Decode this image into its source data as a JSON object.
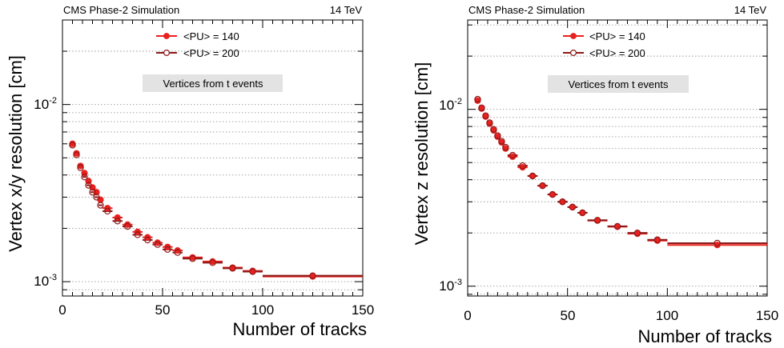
{
  "chart_data": [
    {
      "type": "scatter",
      "header_left": "CMS Phase-2 Simulation",
      "header_right": "14 TeV",
      "xlabel": "Number of tracks",
      "ylabel": "Vertex x/y resolution [cm]",
      "annotation": "Vertices from t events",
      "xlim": [
        0,
        150
      ],
      "ylim": [
        0.00083,
        0.03
      ],
      "y_scale": "log",
      "grid": "horizontal dotted",
      "legend_position": "top-center",
      "x_ticks": [
        "0",
        "50",
        "100",
        "150"
      ],
      "y_tick_values": [
        0.001,
        0.01
      ],
      "y_ticks": [
        "10",
        "10"
      ],
      "y_tick_exponents": [
        "-3",
        "-2"
      ],
      "series": [
        {
          "name": "<PU> = 140",
          "marker": "filled-circle",
          "color": "#e8211e",
          "x": [
            5,
            7,
            9,
            11,
            13,
            15,
            17,
            19,
            22.5,
            27.5,
            32.5,
            37.5,
            42.5,
            47.5,
            52.5,
            57.5,
            65,
            75,
            85,
            95,
            125
          ],
          "x_err": [
            1,
            1,
            1,
            1,
            1,
            1,
            1,
            1,
            2.5,
            2.5,
            2.5,
            2.5,
            2.5,
            2.5,
            2.5,
            2.5,
            5,
            5,
            5,
            5,
            25
          ],
          "y": [
            0.006,
            0.0053,
            0.0045,
            0.0041,
            0.0037,
            0.0034,
            0.0032,
            0.0029,
            0.0026,
            0.0023,
            0.0021,
            0.00191,
            0.00178,
            0.00166,
            0.00157,
            0.0015,
            0.00137,
            0.0013,
            0.0012,
            0.00115,
            0.00107
          ]
        },
        {
          "name": "<PU> = 200",
          "marker": "open-circle",
          "color": "#8b1a1a",
          "x": [
            5,
            7,
            9,
            11,
            13,
            15,
            17,
            19,
            22.5,
            27.5,
            32.5,
            37.5,
            42.5,
            47.5,
            52.5,
            57.5,
            65,
            75,
            85,
            95,
            125
          ],
          "x_err": [
            1,
            1,
            1,
            1,
            1,
            1,
            1,
            1,
            2.5,
            2.5,
            2.5,
            2.5,
            2.5,
            2.5,
            2.5,
            2.5,
            5,
            5,
            5,
            5,
            25
          ],
          "y": [
            0.0059,
            0.0052,
            0.0044,
            0.0039,
            0.0035,
            0.0032,
            0.003,
            0.0027,
            0.0025,
            0.0022,
            0.00205,
            0.00184,
            0.00172,
            0.00162,
            0.00152,
            0.00146,
            0.00135,
            0.00128,
            0.00119,
            0.00114,
            0.00108
          ]
        }
      ]
    },
    {
      "type": "scatter",
      "header_left": "CMS Phase-2 Simulation",
      "header_right": "14 TeV",
      "xlabel": "Number of tracks",
      "ylabel": "Vertex z resolution [cm]",
      "annotation": "Vertices from t events",
      "xlim": [
        0,
        150
      ],
      "ylim": [
        0.00088,
        0.032
      ],
      "y_scale": "log",
      "grid": "horizontal dotted",
      "legend_position": "top-center",
      "x_ticks": [
        "0",
        "50",
        "100",
        "150"
      ],
      "y_tick_values": [
        0.001,
        0.01
      ],
      "y_ticks": [
        "10",
        "10"
      ],
      "y_tick_exponents": [
        "-3",
        "-2"
      ],
      "series": [
        {
          "name": "<PU> = 140",
          "marker": "filled-circle",
          "color": "#e8211e",
          "x": [
            5,
            7,
            9,
            11,
            13,
            15,
            17,
            19,
            22.5,
            27.5,
            32.5,
            37.5,
            42.5,
            47.5,
            52.5,
            57.5,
            65,
            75,
            85,
            95,
            125
          ],
          "x_err": [
            1,
            1,
            1,
            1,
            1,
            1,
            1,
            1,
            2.5,
            2.5,
            2.5,
            2.5,
            2.5,
            2.5,
            2.5,
            2.5,
            5,
            5,
            5,
            5,
            25
          ],
          "y": [
            0.0112,
            0.0101,
            0.0091,
            0.0083,
            0.0076,
            0.007,
            0.0065,
            0.006,
            0.0054,
            0.0047,
            0.0042,
            0.0037,
            0.0033,
            0.003,
            0.0028,
            0.0026,
            0.00235,
            0.00217,
            0.00198,
            0.00181,
            0.00171
          ]
        },
        {
          "name": "<PU> = 200",
          "marker": "open-circle",
          "color": "#8b1a1a",
          "x": [
            5,
            7,
            9,
            11,
            13,
            15,
            17,
            19,
            22.5,
            27.5,
            32.5,
            37.5,
            42.5,
            47.5,
            52.5,
            57.5,
            65,
            75,
            85,
            95,
            125
          ],
          "x_err": [
            1,
            1,
            1,
            1,
            1,
            1,
            1,
            1,
            2.5,
            2.5,
            2.5,
            2.5,
            2.5,
            2.5,
            2.5,
            2.5,
            5,
            5,
            5,
            5,
            25
          ],
          "y": [
            0.0114,
            0.0102,
            0.0092,
            0.0084,
            0.0077,
            0.0071,
            0.0066,
            0.0061,
            0.0055,
            0.0048,
            0.0042,
            0.0037,
            0.0033,
            0.003,
            0.0028,
            0.0026,
            0.00236,
            0.00218,
            0.002,
            0.00183,
            0.00175
          ]
        }
      ]
    }
  ]
}
